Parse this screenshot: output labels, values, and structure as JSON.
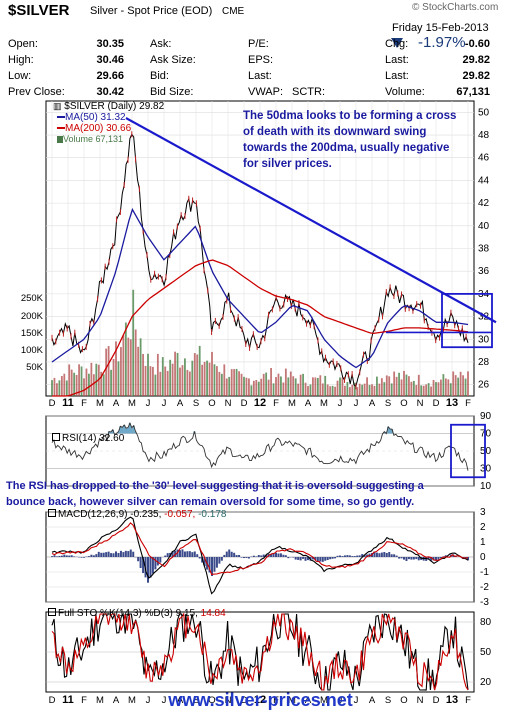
{
  "header": {
    "symbol": "$SILVER",
    "description": "Silver - Spot Price (EOD)",
    "exchange": "CME",
    "watermark": "© StockCharts.com",
    "date": "Friday  15-Feb-2013",
    "pct_change": "-1.97%",
    "rows": [
      {
        "k1": "Open:",
        "v1": "30.35",
        "k2": "Ask:",
        "v2": "",
        "k3": "P/E:",
        "v3": "",
        "k4": "Chg:",
        "v4": "-0.60"
      },
      {
        "k1": "High:",
        "v1": "30.46",
        "k2": "Ask Size:",
        "v2": "",
        "k3": "EPS:",
        "v3": "",
        "k4": "Last:",
        "v4": "29.82"
      },
      {
        "k1": "Low:",
        "v1": "29.66",
        "k2": "Bid:",
        "v2": "",
        "k3": "Last:",
        "v3": "",
        "k4": "Last:",
        "v4": "29.82"
      },
      {
        "k1": "Prev Close:",
        "v1": "30.42",
        "k2": "Bid Size:",
        "v2": "",
        "k3": "VWAP:",
        "v3": "",
        "k3b": "SCTR:",
        "k4": "Volume:",
        "v4": "67,131"
      }
    ]
  },
  "colors": {
    "price": "#000000",
    "ma50": "#1a1aa0",
    "ma200": "#cc0000",
    "volume": "#b04040",
    "trend": "#1a1acc",
    "annotation": "#1a1aa0",
    "rsi_fill": "#6fa8c8",
    "macd_hist": "#3a4a8a"
  },
  "legend_main": {
    "title": "$SILVER (Daily) 29.82",
    "ma50": "MA(50) 31.32",
    "ma200": "MA(200) 30.66",
    "volume": "Volume 67,131"
  },
  "annotations": {
    "top": [
      "The 50dma looks to be forming a cross",
      "of death with its downward swing",
      "towards the 200dma, usually negative",
      "for silver prices."
    ],
    "rsi": [
      "The RSI has dropped to the '30' level suggesting that it is oversold suggesting a",
      "bounce back, however silver can remain oversold for some time, so go gently."
    ]
  },
  "panel_labels": {
    "rsi": "RSI(14) 32.60",
    "macd_prefix": "MACD(12,26,9) -0.235,",
    "macd_sig": "-0.057,",
    "macd_hist": "-0.178",
    "sto_prefix": "Full STO %K(14,3) %D(3) 9.15,",
    "sto_d": "14.84"
  },
  "footer": "www.silver-prices.net",
  "chart_data": [
    {
      "type": "line",
      "title": "$SILVER (Daily) 29.82",
      "x": [
        "D",
        "11",
        "F",
        "M",
        "A",
        "M",
        "J",
        "J",
        "A",
        "S",
        "O",
        "N",
        "D",
        "12",
        "F",
        "M",
        "A",
        "M",
        "J",
        "J",
        "A",
        "S",
        "O",
        "N",
        "D",
        "13",
        "F"
      ],
      "ylim": [
        25,
        51
      ],
      "yticks": [
        26,
        28,
        30,
        32,
        34,
        36,
        38,
        40,
        42,
        44,
        46,
        48,
        50
      ],
      "volume_ticks": [
        "50K",
        "100K",
        "150K",
        "200K",
        "250K"
      ],
      "series": [
        {
          "name": "$SILVER",
          "values": [
            29.5,
            30.8,
            28.5,
            34.5,
            39.5,
            48.5,
            36.0,
            35.5,
            41.0,
            42.5,
            30.5,
            33.5,
            30.0,
            29.5,
            33.5,
            33.0,
            32.0,
            28.5,
            27.5,
            26.5,
            29.5,
            34.5,
            33.5,
            33.0,
            30.5,
            31.8,
            29.8
          ]
        },
        {
          "name": "MA(50)",
          "values": [
            28.0,
            29.0,
            30.0,
            32.0,
            36.0,
            41.5,
            39.0,
            37.0,
            38.5,
            40.0,
            36.0,
            33.5,
            32.0,
            30.5,
            31.5,
            33.0,
            32.5,
            30.0,
            28.5,
            27.5,
            28.5,
            31.5,
            33.0,
            32.5,
            31.5,
            31.5,
            31.3
          ]
        },
        {
          "name": "MA(200)",
          "values": [
            25.0,
            25.0,
            25.5,
            26.5,
            29.0,
            32.0,
            33.5,
            34.5,
            35.5,
            36.5,
            37.0,
            36.5,
            35.5,
            34.5,
            33.8,
            33.5,
            33.0,
            32.0,
            31.5,
            31.0,
            30.5,
            30.7,
            31.0,
            31.0,
            30.9,
            30.8,
            30.66
          ]
        },
        {
          "name": "Volume",
          "values": [
            60000,
            90000,
            100000,
            120000,
            150000,
            300000,
            130000,
            110000,
            150000,
            140000,
            130000,
            90000,
            60000,
            70000,
            80000,
            70000,
            60000,
            60000,
            55000,
            50000,
            60000,
            80000,
            70000,
            60000,
            55000,
            70000,
            67131
          ]
        }
      ]
    },
    {
      "type": "line",
      "title": "RSI(14) 32.60",
      "ylim": [
        10,
        90
      ],
      "yticks": [
        10,
        30,
        50,
        70,
        90
      ],
      "series": [
        {
          "name": "RSI(14)",
          "values": [
            60,
            50,
            45,
            62,
            72,
            80,
            42,
            45,
            62,
            68,
            35,
            52,
            40,
            45,
            60,
            58,
            50,
            38,
            42,
            40,
            55,
            75,
            60,
            50,
            42,
            55,
            32.6
          ]
        }
      ]
    },
    {
      "type": "line",
      "title": "MACD(12,26,9) -0.235, -0.057, -0.178",
      "ylim": [
        -3,
        3
      ],
      "yticks": [
        -3,
        -2,
        -1,
        0,
        1,
        2,
        3
      ],
      "series": [
        {
          "name": "MACD",
          "values": [
            0.3,
            0.4,
            0.3,
            1.2,
            1.8,
            2.8,
            -1.5,
            -0.5,
            1.0,
            1.5,
            -2.5,
            -0.5,
            -0.8,
            -0.3,
            0.7,
            0.4,
            0.0,
            -0.9,
            -0.6,
            -0.4,
            0.5,
            1.3,
            0.6,
            0.0,
            -0.4,
            0.3,
            -0.235
          ]
        },
        {
          "name": "Signal",
          "values": [
            0.2,
            0.3,
            0.3,
            0.9,
            1.5,
            2.3,
            0.2,
            -0.6,
            0.5,
            1.2,
            -1.2,
            -1.0,
            -0.7,
            -0.4,
            0.4,
            0.5,
            0.2,
            -0.6,
            -0.7,
            -0.5,
            0.2,
            1.0,
            0.8,
            0.2,
            -0.2,
            0.1,
            -0.057
          ]
        },
        {
          "name": "Histogram",
          "values": [
            0.1,
            0.1,
            0.0,
            0.3,
            0.3,
            0.5,
            -1.7,
            0.1,
            0.5,
            0.3,
            -1.3,
            0.5,
            -0.1,
            0.1,
            0.3,
            -0.1,
            -0.2,
            -0.3,
            0.1,
            0.1,
            0.3,
            0.3,
            -0.2,
            -0.2,
            -0.2,
            0.2,
            -0.178
          ]
        }
      ]
    },
    {
      "type": "line",
      "title": "Full STO %K(14,3) %D(3) 9.15, 14.84",
      "ylim": [
        10,
        90
      ],
      "yticks": [
        20,
        50,
        80
      ],
      "series": [
        {
          "name": "%K",
          "values": [
            70,
            30,
            55,
            85,
            90,
            85,
            20,
            40,
            80,
            85,
            15,
            60,
            20,
            40,
            85,
            75,
            50,
            15,
            40,
            20,
            70,
            90,
            60,
            25,
            20,
            80,
            9.15
          ]
        },
        {
          "name": "%D",
          "values": [
            65,
            35,
            50,
            80,
            88,
            82,
            28,
            40,
            75,
            82,
            22,
            55,
            25,
            38,
            80,
            74,
            52,
            20,
            38,
            24,
            65,
            88,
            62,
            30,
            22,
            75,
            14.84
          ]
        }
      ]
    }
  ]
}
